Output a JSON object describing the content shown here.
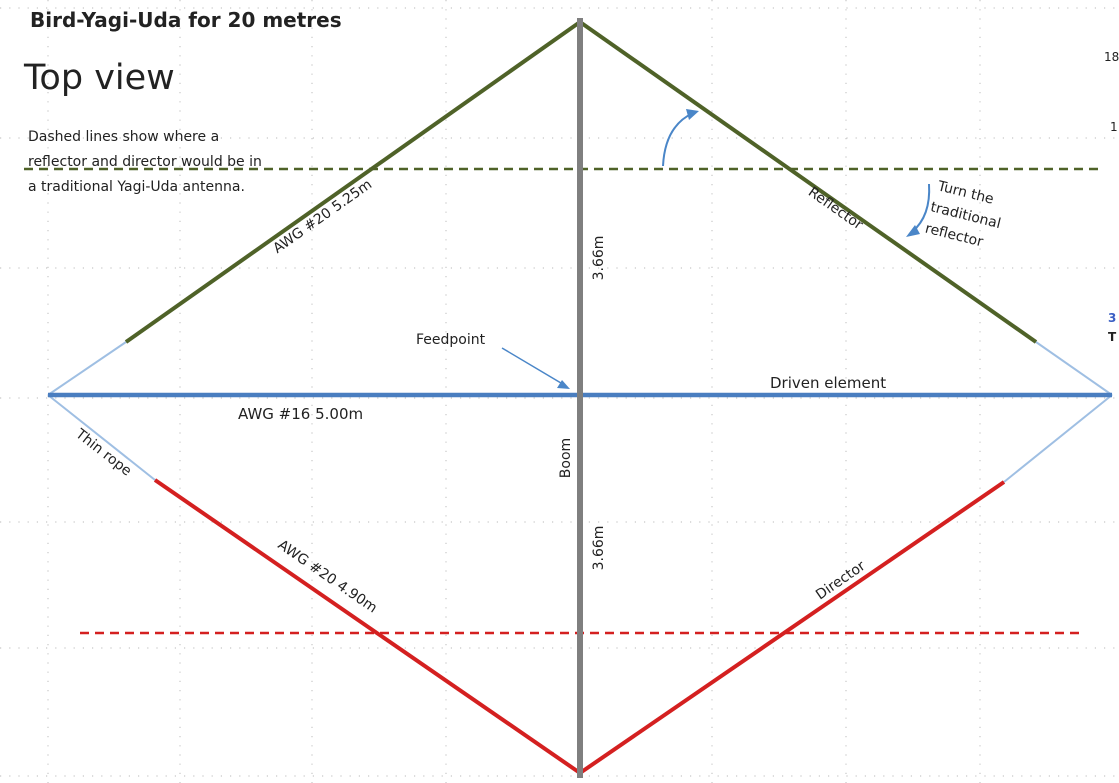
{
  "title": "Bird-Yagi-Uda for 20 metres",
  "subtitle": "Top view",
  "note": {
    "line1": "Dashed lines show where a",
    "line2": "reflector and director would be in",
    "line3": "a traditional Yagi-Uda antenna."
  },
  "labels": {
    "reflector_wire": "AWG #20 5.25m",
    "reflector": "Reflector",
    "boom_upper_length": "3.66m",
    "boom_lower_length": "3.66m",
    "boom": "Boom",
    "feedpoint": "Feedpoint",
    "driven_element": "Driven element",
    "driven_wire": "AWG #16 5.00m",
    "thin_rope": "Thin rope",
    "director_wire": "AWG #20 4.90m",
    "director": "Director"
  },
  "rotate_note": {
    "line1": "Turn the",
    "line2": "traditional",
    "line3": "reflector"
  },
  "edge_fragments": {
    "top_right": "18",
    "upper_right": "1",
    "mid_right_blue": "3",
    "mid_right_black": "T"
  },
  "colors": {
    "reflector": "#4f6228",
    "director": "#d42020",
    "driven": "#4a7ec0",
    "rope": "#9fbfe3",
    "boom": "#7f7f7f",
    "arrow": "#4a86c8"
  }
}
